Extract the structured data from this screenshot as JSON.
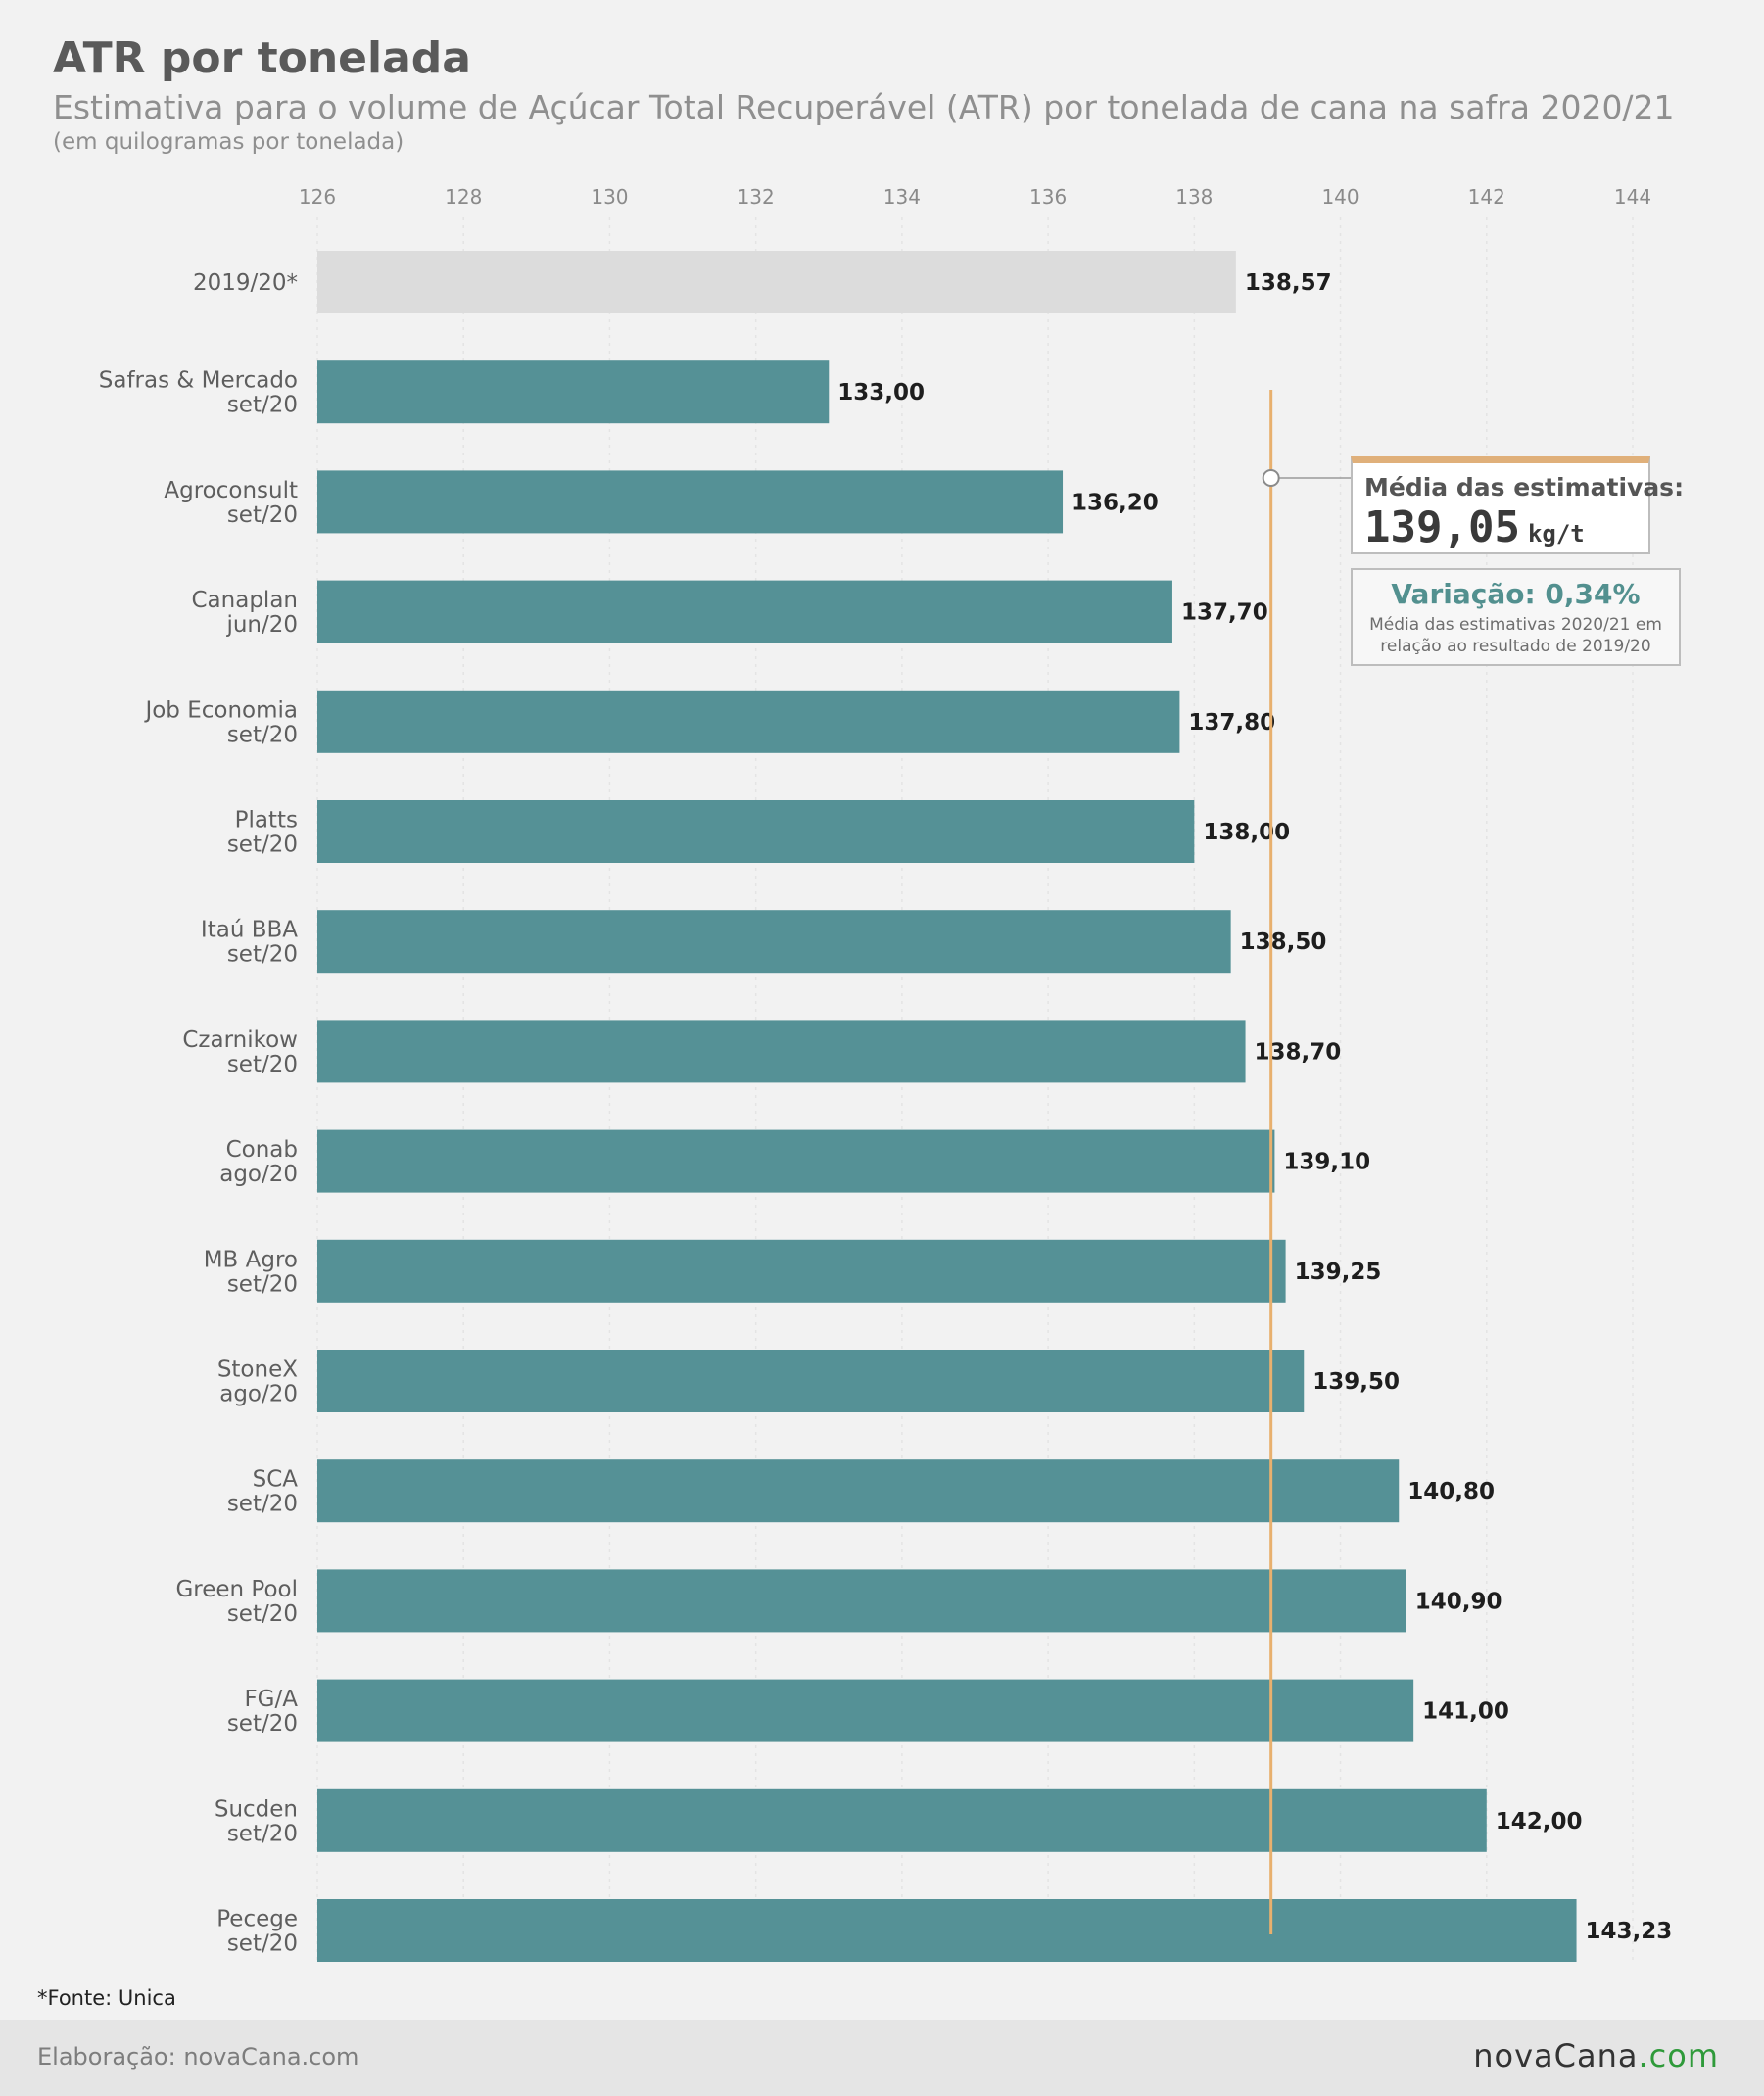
{
  "title": "ATR por tonelada",
  "subtitle": "Estimativa para o volume de Açúcar Total Recuperável (ATR) por tonelada de cana na safra 2020/21",
  "unit_note": "(em quilogramas por tonelada)",
  "chart_data": {
    "type": "bar",
    "orientation": "horizontal",
    "title": "ATR por tonelada",
    "xlim": [
      126,
      144
    ],
    "ticks": [
      126,
      128,
      130,
      132,
      134,
      136,
      138,
      140,
      142,
      144
    ],
    "tick_labels": [
      "126",
      "128",
      "130",
      "132",
      "134",
      "136",
      "138",
      "140",
      "142",
      "144"
    ],
    "grid": true,
    "categories": [
      [
        "2019/20*"
      ],
      [
        "Safras & Mercado",
        "set/20"
      ],
      [
        "Agroconsult",
        "set/20"
      ],
      [
        "Canaplan",
        "jun/20"
      ],
      [
        "Job Economia",
        "set/20"
      ],
      [
        "Platts",
        "set/20"
      ],
      [
        "Itaú BBA",
        "set/20"
      ],
      [
        "Czarnikow",
        "set/20"
      ],
      [
        "Conab",
        "ago/20"
      ],
      [
        "MB Agro",
        "set/20"
      ],
      [
        "StoneX",
        "ago/20"
      ],
      [
        "SCA",
        "set/20"
      ],
      [
        "Green Pool",
        "set/20"
      ],
      [
        "FG/A",
        "set/20"
      ],
      [
        "Sucden",
        "set/20"
      ],
      [
        "Pecege",
        "set/20"
      ]
    ],
    "values": [
      138.57,
      133.0,
      136.2,
      137.7,
      137.8,
      138.0,
      138.5,
      138.7,
      139.1,
      139.25,
      139.5,
      140.8,
      140.9,
      141.0,
      142.0,
      143.23
    ],
    "value_labels": [
      "138,57",
      "133,00",
      "136,20",
      "137,70",
      "137,80",
      "138,00",
      "138,50",
      "138,70",
      "139,10",
      "139,25",
      "139,50",
      "140,80",
      "140,90",
      "141,00",
      "142,00",
      "143,23"
    ],
    "colors": {
      "reference": "#dcdcdc",
      "estimate": "#559196",
      "average_line": "#e8b06e"
    },
    "average": 139.05
  },
  "annotation": {
    "avg_label": "Média das estimativas:",
    "avg_value": "139,05",
    "avg_unit": "kg/t",
    "variation_title": "Variação: 0,34%",
    "variation_desc": "Média das estimativas 2020/21 em relação ao resultado de 2019/20"
  },
  "footnote": "*Fonte: Unica",
  "footer": {
    "credit": "Elaboração: novaCana.com",
    "logo_main": "novaCana",
    "logo_tld": ".com"
  }
}
